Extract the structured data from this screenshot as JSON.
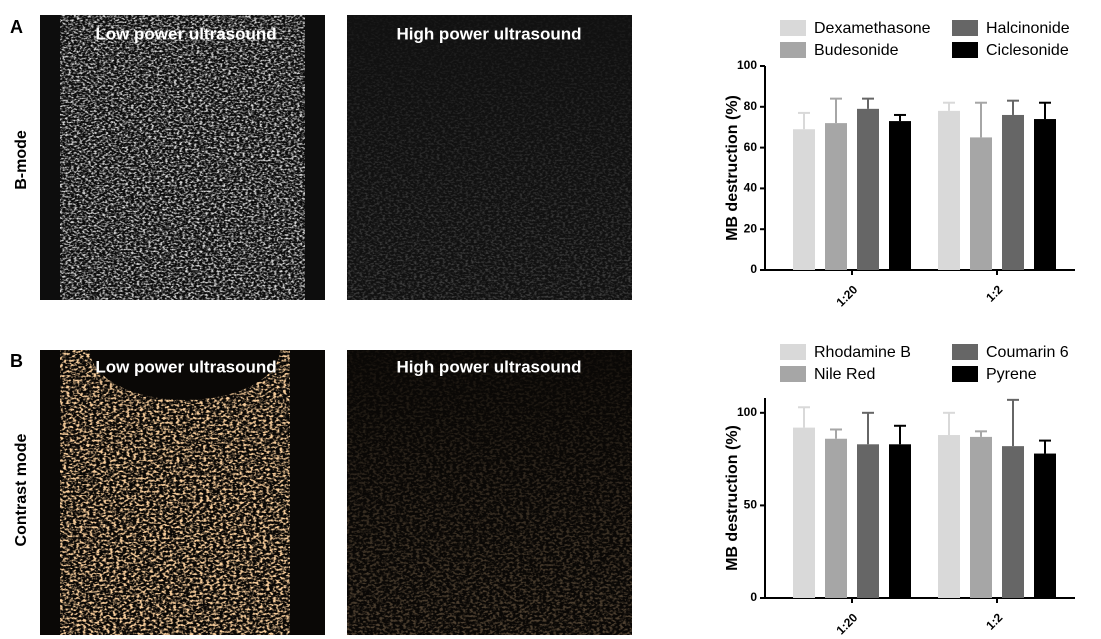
{
  "panels": {
    "labels": [
      "A",
      "B"
    ],
    "rows": [
      "B-mode",
      "Contrast mode"
    ],
    "images": [
      [
        "Low power ultrasound",
        "High power ultrasound"
      ],
      [
        "Low power ultrasound",
        "High power ultrasound"
      ]
    ]
  },
  "chart_data": [
    {
      "type": "bar",
      "ylabel": "MB destruction (%)",
      "categories": [
        "1:20",
        "1:2"
      ],
      "ylim": [
        0,
        100
      ],
      "yticks": [
        0,
        20,
        40,
        60,
        80,
        100
      ],
      "series": [
        {
          "name": "Dexamethasone",
          "color": "#d9d9d9",
          "values": [
            69,
            78
          ],
          "errors": [
            8,
            4
          ]
        },
        {
          "name": "Budesonide",
          "color": "#a6a6a6",
          "values": [
            72,
            65
          ],
          "errors": [
            12,
            17
          ]
        },
        {
          "name": "Halcinonide",
          "color": "#666666",
          "values": [
            79,
            76
          ],
          "errors": [
            5,
            7
          ]
        },
        {
          "name": "Ciclesonide",
          "color": "#000000",
          "values": [
            73,
            74
          ],
          "errors": [
            3,
            8
          ]
        }
      ]
    },
    {
      "type": "bar",
      "ylabel": "MB destruction (%)",
      "categories": [
        "1:20",
        "1:2"
      ],
      "ylim": [
        0,
        108
      ],
      "yticks": [
        0,
        50,
        100
      ],
      "series": [
        {
          "name": "Rhodamine B",
          "color": "#d9d9d9",
          "values": [
            92,
            88
          ],
          "errors": [
            11,
            12
          ]
        },
        {
          "name": "Nile Red",
          "color": "#a6a6a6",
          "values": [
            86,
            87
          ],
          "errors": [
            5,
            3
          ]
        },
        {
          "name": "Coumarin 6",
          "color": "#666666",
          "values": [
            83,
            82
          ],
          "errors": [
            17,
            25
          ]
        },
        {
          "name": "Pyrene",
          "color": "#000000",
          "values": [
            83,
            78
          ],
          "errors": [
            10,
            7
          ]
        }
      ]
    }
  ]
}
